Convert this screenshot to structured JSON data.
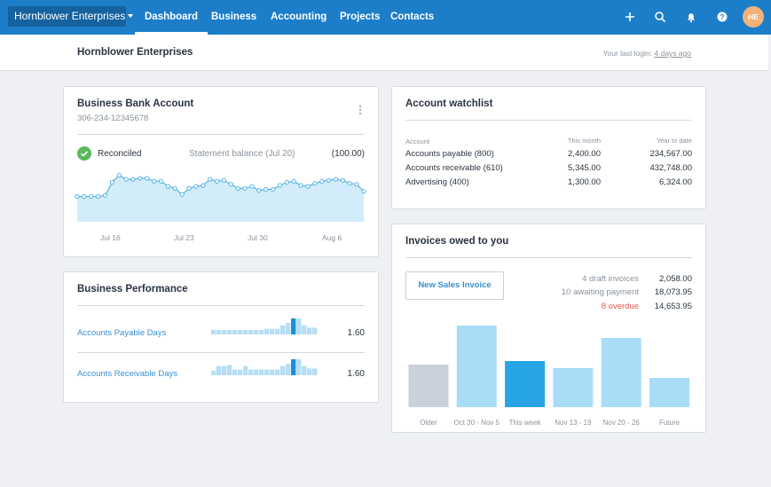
{
  "nav": {
    "org_switcher": "Hornblower Enterprises",
    "items": [
      "Dashboard",
      "Business",
      "Accounting",
      "Projects",
      "Contacts"
    ],
    "active": "Dashboard",
    "avatar_initials": "HE",
    "icons": [
      "plus-icon",
      "search-icon",
      "bell-icon",
      "help-icon"
    ]
  },
  "header": {
    "title": "Hornblower Enterprises",
    "last_login_prefix": "Your last login: ",
    "last_login_ago": "4 days ago"
  },
  "bank": {
    "title": "Business Bank Account",
    "account_number": "306-234-12345678",
    "status": "Reconciled",
    "statement_label": "Statement balance (Jul 20)",
    "statement_value": "(100.00)",
    "x_ticks": [
      "Jul 16",
      "Jul 23",
      "Jul 30",
      "Aug 6"
    ],
    "chart_data": {
      "type": "area",
      "values": [
        50,
        50,
        50,
        50,
        52,
        78,
        92,
        84,
        84,
        86,
        86,
        80,
        80,
        70,
        66,
        54,
        66,
        70,
        72,
        84,
        80,
        82,
        74,
        66,
        66,
        70,
        62,
        64,
        64,
        72,
        78,
        80,
        72,
        70,
        76,
        80,
        82,
        84,
        82,
        76,
        74,
        60
      ],
      "colors": {
        "line": "#58b4e3",
        "fill": "#d3ecf9",
        "accent": "#1c7ec9"
      }
    }
  },
  "performance": {
    "title": "Business Performance",
    "rows": [
      {
        "label": "Accounts Payable Days",
        "value": "1.60",
        "bars": [
          4,
          4,
          4,
          4,
          4,
          4,
          4,
          4,
          4,
          4,
          5,
          5,
          5,
          8,
          10,
          14,
          14,
          8,
          6,
          6
        ],
        "highlight_index": 15
      },
      {
        "label": "Accounts Receivable Days",
        "value": "1.60",
        "bars": [
          4,
          8,
          8,
          9,
          5,
          5,
          8,
          5,
          5,
          5,
          5,
          5,
          5,
          8,
          10,
          14,
          14,
          8,
          6,
          6
        ],
        "highlight_index": 15
      }
    ]
  },
  "watchlist": {
    "title": "Account watchlist",
    "columns": [
      "Account",
      "This month",
      "Year to date"
    ],
    "rows": [
      {
        "account": "Accounts payable (800)",
        "this_month": "2,400.00",
        "ytd": "234,567.00"
      },
      {
        "account": "Accounts receivable (610)",
        "this_month": "5,345.00",
        "ytd": "432,748.00"
      },
      {
        "account": "Advertising (400)",
        "this_month": "1,300.00",
        "ytd": "6,324.00"
      }
    ]
  },
  "invoices": {
    "title": "Invoices owed to you",
    "new_button": "New Sales Invoice",
    "stats": [
      {
        "label": "4 draft invoices",
        "value": "2,058.00",
        "alert": false
      },
      {
        "label": "10 awaiting payment",
        "value": "18,073.95",
        "alert": false
      },
      {
        "label": "8 overdue",
        "value": "14,653.95",
        "alert": true
      }
    ],
    "chart_data": {
      "type": "bar",
      "categories": [
        "Older",
        "Oct 30 - Nov 5",
        "This week",
        "Nov 13 - 19",
        "Nov 20 - 26",
        "Future"
      ],
      "values": [
        48,
        92,
        52,
        44,
        78,
        33
      ],
      "colors": [
        "#c9d2da",
        "#a9dcf6",
        "#27a3e6",
        "#a9dcf6",
        "#a9dcf6",
        "#a9dcf6"
      ]
    }
  }
}
